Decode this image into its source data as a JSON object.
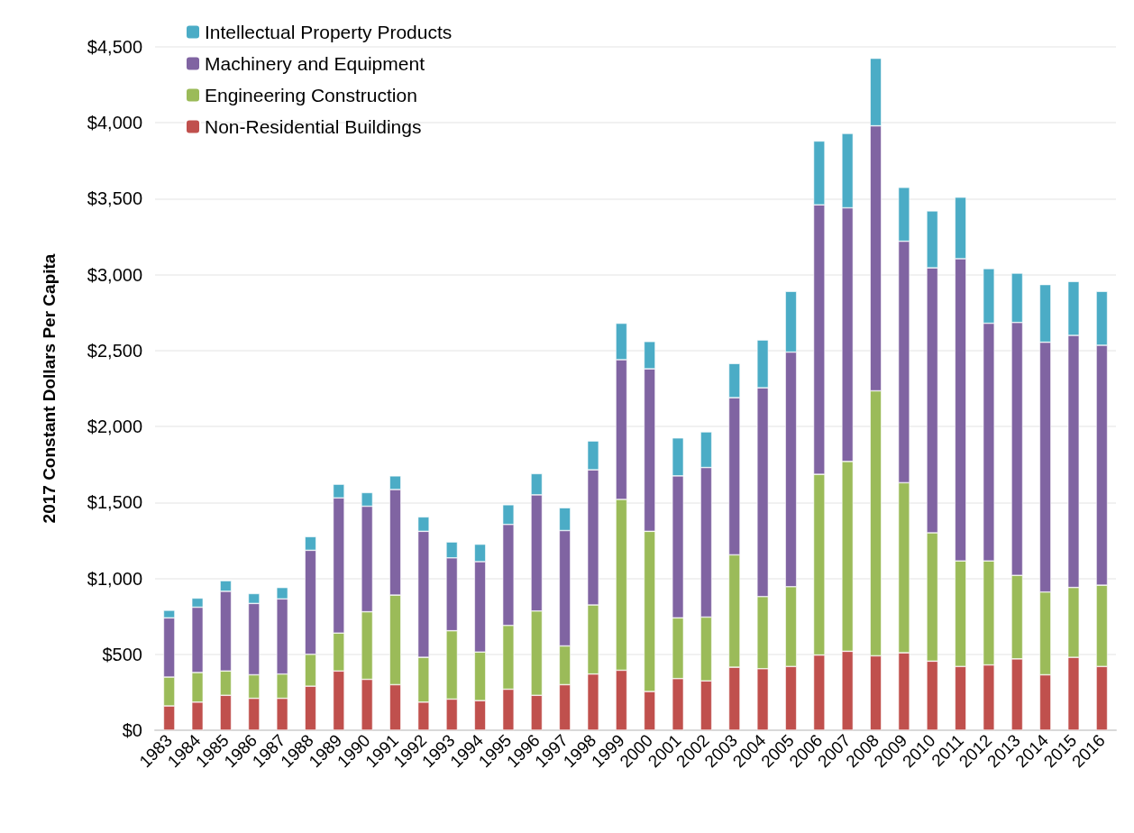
{
  "chart_data": {
    "type": "bar",
    "stacked": true,
    "ylabel": "2017 Constant Dollars Per Capita",
    "categories": [
      "1983",
      "1984",
      "1985",
      "1986",
      "1987",
      "1988",
      "1989",
      "1990",
      "1991",
      "1992",
      "1993",
      "1994",
      "1995",
      "1996",
      "1997",
      "1998",
      "1999",
      "2000",
      "2001",
      "2002",
      "2003",
      "2004",
      "2005",
      "2006",
      "2007",
      "2008",
      "2009",
      "2010",
      "2011",
      "2012",
      "2013",
      "2014",
      "2015",
      "2016"
    ],
    "series": [
      {
        "name": "Non-Residential Buildings",
        "color": "#c0504d",
        "values": [
          160,
          185,
          230,
          210,
          210,
          290,
          390,
          335,
          300,
          185,
          205,
          195,
          270,
          230,
          300,
          370,
          395,
          255,
          340,
          325,
          415,
          405,
          420,
          495,
          520,
          490,
          510,
          455,
          420,
          430,
          470,
          365,
          480,
          420
        ]
      },
      {
        "name": "Engineering Construction",
        "color": "#9bbb59",
        "values": [
          190,
          195,
          160,
          155,
          160,
          210,
          250,
          445,
          590,
          295,
          450,
          320,
          420,
          555,
          255,
          455,
          1125,
          1055,
          400,
          420,
          740,
          475,
          525,
          1190,
          1250,
          1745,
          1120,
          845,
          695,
          685,
          550,
          545,
          460,
          535
        ]
      },
      {
        "name": "Machinery and Equipment",
        "color": "#8064a2",
        "values": [
          390,
          430,
          525,
          470,
          495,
          685,
          890,
          695,
          695,
          830,
          480,
          595,
          665,
          765,
          760,
          890,
          920,
          1070,
          935,
          985,
          1035,
          1375,
          1545,
          1775,
          1670,
          1745,
          1590,
          1745,
          1990,
          1565,
          1665,
          1645,
          1660,
          1580
        ]
      },
      {
        "name": "Intellectual Property Products",
        "color": "#4bacc6",
        "values": [
          50,
          60,
          70,
          65,
          75,
          90,
          90,
          90,
          90,
          95,
          105,
          115,
          130,
          140,
          150,
          190,
          240,
          180,
          250,
          235,
          225,
          315,
          400,
          420,
          490,
          445,
          355,
          375,
          405,
          360,
          325,
          380,
          355,
          355
        ]
      }
    ],
    "ylim": [
      0,
      4500
    ],
    "yticks": [
      {
        "value": 0,
        "label": "$0"
      },
      {
        "value": 500,
        "label": "$500"
      },
      {
        "value": 1000,
        "label": "$1,000"
      },
      {
        "value": 1500,
        "label": "$1,500"
      },
      {
        "value": 2000,
        "label": "$2,000"
      },
      {
        "value": 2500,
        "label": "$2,500"
      },
      {
        "value": 3000,
        "label": "$3,000"
      },
      {
        "value": 3500,
        "label": "$3,500"
      },
      {
        "value": 4000,
        "label": "$4,000"
      },
      {
        "value": 4500,
        "label": "$4,500"
      }
    ],
    "grid": "y",
    "legend": "top left"
  }
}
